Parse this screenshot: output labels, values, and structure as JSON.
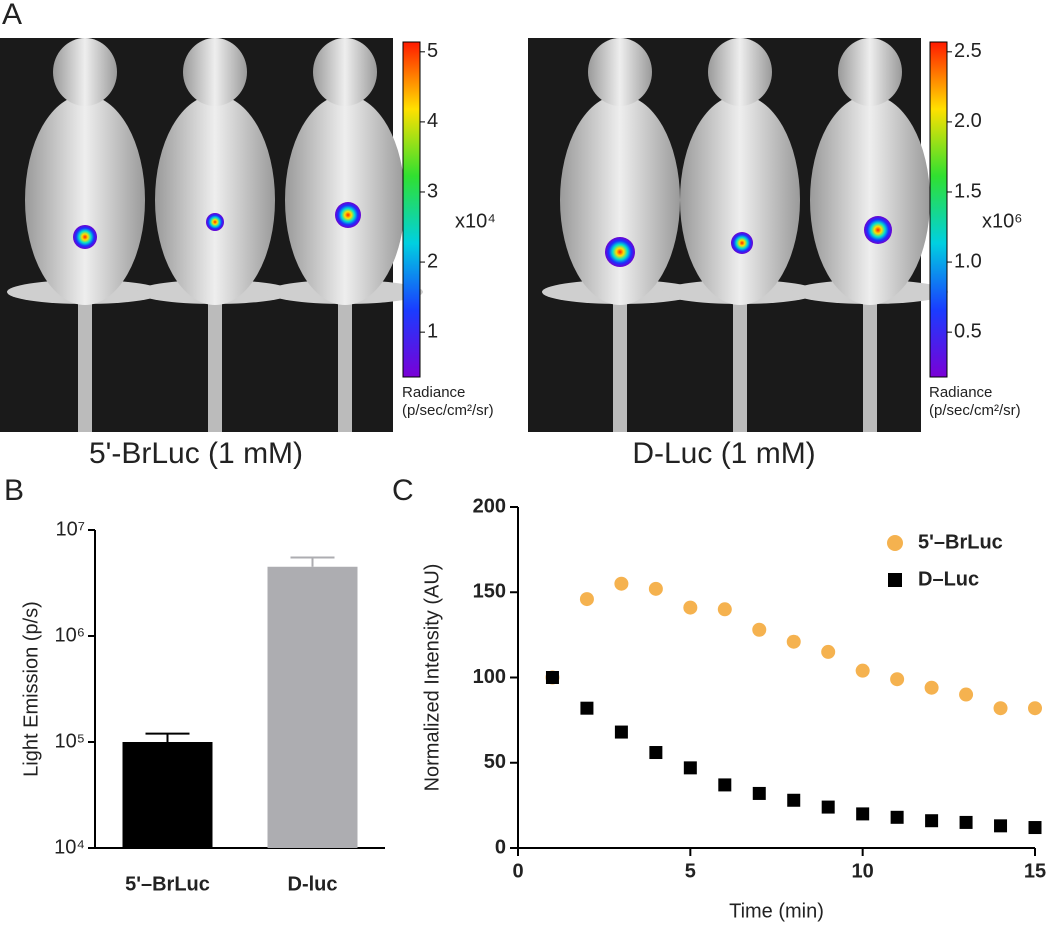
{
  "panel_labels": [
    "A",
    "B",
    "C"
  ],
  "imaging": [
    {
      "caption": "5'-BrLuc (1 mM)",
      "colorbar": {
        "lim": [
          0.36,
          5.14
        ],
        "ticks": [
          1,
          2,
          3,
          4,
          5
        ],
        "multiplier": "x10⁴",
        "label": "Radiance",
        "unit": "(p/sec/cm²/sr)"
      }
    },
    {
      "caption": "D-Luc (1 mM)",
      "colorbar": {
        "lim": [
          0.18,
          2.57
        ],
        "ticks": [
          0.5,
          {
            "value": 1,
            "label": "1.0"
          },
          1.5,
          {
            "value": 2,
            "label": "2.0"
          },
          2.5
        ],
        "multiplier": "x10⁶",
        "label": "Radiance",
        "unit": "(p/sec/cm²/sr)"
      }
    }
  ],
  "chart_data": [
    {
      "type": "bar",
      "log_scale": true,
      "ylabel": "Light Emission (p/s)",
      "categories": [
        "5'–BrLuc",
        "D-luc"
      ],
      "values": [
        100000,
        4500000
      ],
      "errors": [
        20000,
        1000000
      ],
      "colors": [
        "#000000",
        "#adadb1"
      ],
      "ylim": [
        10000,
        10000000
      ],
      "yticks": [
        {
          "value": 10000,
          "label": "10⁴"
        },
        {
          "value": 100000,
          "label": "10⁵"
        },
        {
          "value": 1000000,
          "label": "10⁶"
        },
        {
          "value": 10000000,
          "label": "10⁷"
        }
      ]
    },
    {
      "type": "scatter",
      "xlabel": "Time (min)",
      "ylabel": "Normalized Intensity (AU)",
      "x": [
        1,
        2,
        3,
        4,
        5,
        6,
        7,
        8,
        9,
        10,
        11,
        12,
        13,
        14,
        15
      ],
      "series": [
        {
          "name": "5'–BrLuc",
          "color": "#f5b24f",
          "marker": "circle",
          "values": [
            100,
            146,
            155,
            152,
            141,
            140,
            128,
            121,
            115,
            104,
            99,
            94,
            90,
            82,
            82
          ]
        },
        {
          "name": "D–Luc",
          "color": "#000000",
          "marker": "square",
          "values": [
            100,
            82,
            68,
            56,
            47,
            37,
            32,
            28,
            24,
            20,
            18,
            16,
            15,
            13,
            12
          ]
        }
      ],
      "xlim": [
        0,
        15
      ],
      "xticks": [
        0,
        5,
        10,
        15
      ],
      "ylim": [
        0,
        200
      ],
      "yticks": [
        0,
        50,
        100,
        150,
        200
      ]
    }
  ]
}
